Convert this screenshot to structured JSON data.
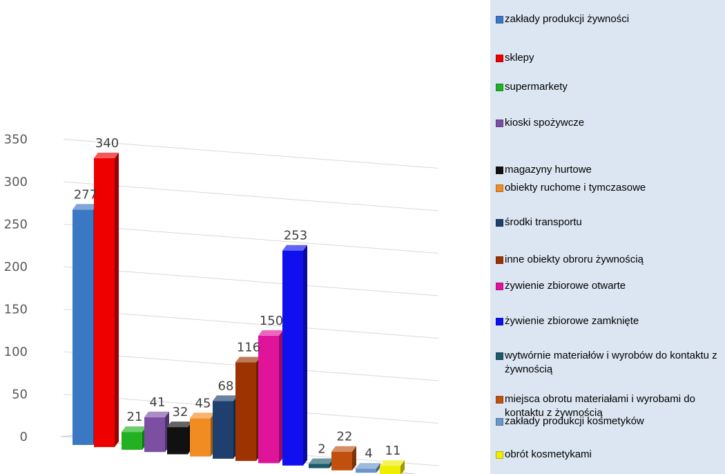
{
  "chart_data": {
    "type": "bar",
    "title": "",
    "xlabel": "",
    "ylabel": "",
    "ylim": [
      0,
      350
    ],
    "yticks": [
      "0",
      "50",
      "100",
      "150",
      "200",
      "250",
      "300",
      "350"
    ],
    "grid": true,
    "legend_position": "right",
    "categories": [
      "zakłady produkcji żywności",
      "sklepy",
      "supermarkety",
      "kioski spożywcze",
      "magazyny hurtowe",
      "obiekty ruchome i tymczasowe",
      "środki transportu",
      "inne obiekty obroru żywnością",
      "żywienie zbiorowe otwarte",
      "żywienie zbiorowe zamknięte",
      "wytwórnie materiałów i wyrobów do kontaktu z żywnością",
      "miejsca obrotu materiałami i wyrobami do kontaktu z żywnością",
      "zakłady produkcji kosmetyków",
      "obrót kosmetykami"
    ],
    "values": [
      277,
      340,
      21,
      41,
      32,
      45,
      68,
      116,
      150,
      253,
      2,
      22,
      4,
      11
    ],
    "colors": [
      "#3a78c4",
      "#ee0000",
      "#22b122",
      "#7c4fa3",
      "#111111",
      "#f08c22",
      "#1f3f6e",
      "#9c3300",
      "#e0149b",
      "#1010ee",
      "#1c5a6a",
      "#c0500e",
      "#6a96cc",
      "#eeee00"
    ]
  }
}
